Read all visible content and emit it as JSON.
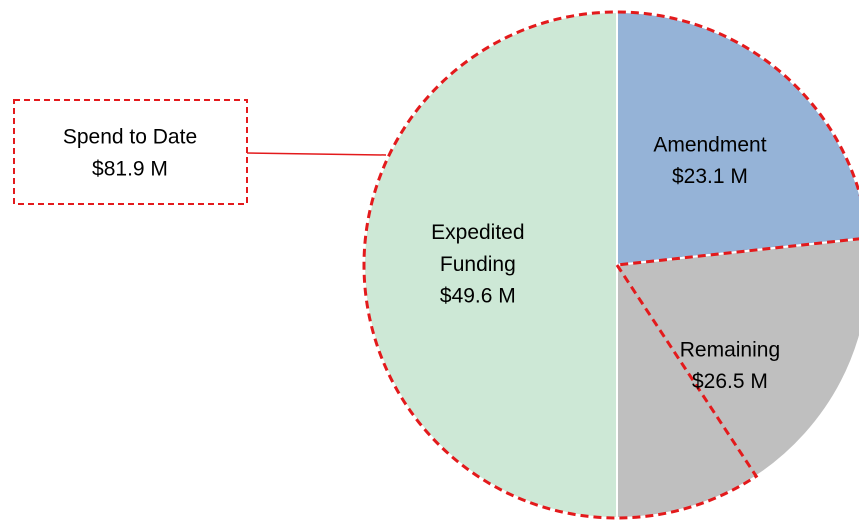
{
  "chart_data": {
    "type": "pie",
    "categories": [
      "Amendment",
      "Remaining",
      "Expedited Funding"
    ],
    "values": [
      23.1,
      26.5,
      49.6
    ],
    "value_labels": [
      "$23.1 M",
      "$26.5 M",
      "$49.6 M"
    ],
    "colors": [
      "#95b3d7",
      "#bfbfbf",
      "#cde8d6"
    ],
    "annotation": {
      "text": "Spend to Date",
      "value": 81.9,
      "value_label": "$81.9 M",
      "color": "#e31a1c"
    }
  }
}
